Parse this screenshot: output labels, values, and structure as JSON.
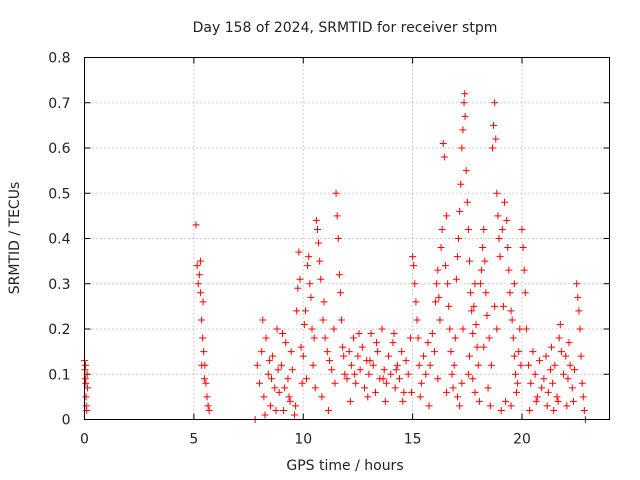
{
  "chart_data": {
    "type": "scatter",
    "title": "Day 158 of 2024, SRMTID for receiver stpm",
    "xlabel": "GPS time / hours",
    "ylabel": "SRMTID / TECUs",
    "xlim": [
      0,
      24
    ],
    "ylim": [
      0,
      0.8
    ],
    "grid": true,
    "marker": "plus",
    "series_color": "#ff0000",
    "x_ticks": [
      0,
      5,
      10,
      15,
      20
    ],
    "x_tick_labels": [
      "0",
      "5",
      "10",
      "15",
      "20"
    ],
    "y_ticks": [
      0,
      0.1,
      0.2,
      0.3,
      0.4,
      0.5,
      0.6,
      0.7,
      0.8
    ],
    "y_tick_labels": [
      "0",
      "0.1",
      "0.2",
      "0.3",
      "0.4",
      "0.5",
      "0.6",
      "0.7",
      "0.8"
    ],
    "series": [
      {
        "name": "SRMTID",
        "points": [
          [
            0.0,
            0.13
          ],
          [
            0.02,
            0.11
          ],
          [
            0.04,
            0.09
          ],
          [
            0.05,
            0.12
          ],
          [
            0.06,
            0.08
          ],
          [
            0.07,
            0.05
          ],
          [
            0.08,
            0.03
          ],
          [
            0.1,
            0.02
          ],
          [
            0.12,
            0.1
          ],
          [
            0.14,
            0.07
          ],
          [
            5.1,
            0.43
          ],
          [
            5.15,
            0.34
          ],
          [
            5.2,
            0.3
          ],
          [
            5.25,
            0.32
          ],
          [
            5.3,
            0.28
          ],
          [
            5.35,
            0.22
          ],
          [
            5.4,
            0.18
          ],
          [
            5.45,
            0.15
          ],
          [
            5.5,
            0.12
          ],
          [
            5.55,
            0.08
          ],
          [
            5.6,
            0.05
          ],
          [
            5.65,
            0.03
          ],
          [
            5.7,
            0.02
          ],
          [
            5.3,
            0.35
          ],
          [
            5.42,
            0.26
          ],
          [
            5.36,
            0.12
          ],
          [
            5.48,
            0.09
          ],
          [
            7.8,
            0.0
          ],
          [
            7.9,
            0.12
          ],
          [
            8.0,
            0.08
          ],
          [
            8.1,
            0.15
          ],
          [
            8.2,
            0.05
          ],
          [
            8.3,
            0.18
          ],
          [
            8.4,
            0.1
          ],
          [
            8.5,
            0.03
          ],
          [
            8.6,
            0.14
          ],
          [
            8.7,
            0.07
          ],
          [
            8.8,
            0.2
          ],
          [
            8.9,
            0.06
          ],
          [
            9.0,
            0.12
          ],
          [
            9.1,
            0.02
          ],
          [
            9.2,
            0.17
          ],
          [
            9.3,
            0.09
          ],
          [
            9.4,
            0.04
          ],
          [
            9.5,
            0.11
          ],
          [
            9.6,
            0.01
          ],
          [
            9.7,
            0.24
          ],
          [
            9.75,
            0.29
          ],
          [
            9.8,
            0.37
          ],
          [
            9.85,
            0.31
          ],
          [
            9.9,
            0.16
          ],
          [
            9.95,
            0.08
          ],
          [
            8.15,
            0.22
          ],
          [
            8.45,
            0.13
          ],
          [
            8.75,
            0.02
          ],
          [
            9.05,
            0.19
          ],
          [
            9.35,
            0.05
          ],
          [
            9.65,
            0.03
          ],
          [
            8.25,
            0.01
          ],
          [
            8.55,
            0.09
          ],
          [
            8.85,
            0.11
          ],
          [
            9.15,
            0.07
          ],
          [
            9.45,
            0.15
          ],
          [
            10.0,
            0.14
          ],
          [
            10.1,
            0.24
          ],
          [
            10.2,
            0.34
          ],
          [
            10.25,
            0.36
          ],
          [
            10.3,
            0.3
          ],
          [
            10.35,
            0.27
          ],
          [
            10.4,
            0.2
          ],
          [
            10.45,
            0.12
          ],
          [
            10.5,
            0.18
          ],
          [
            10.6,
            0.44
          ],
          [
            10.65,
            0.42
          ],
          [
            10.7,
            0.39
          ],
          [
            10.75,
            0.35
          ],
          [
            10.8,
            0.31
          ],
          [
            10.9,
            0.22
          ],
          [
            11.0,
            0.18
          ],
          [
            11.1,
            0.15
          ],
          [
            11.2,
            0.13
          ],
          [
            11.3,
            0.11
          ],
          [
            11.4,
            0.2
          ],
          [
            11.5,
            0.5
          ],
          [
            11.55,
            0.45
          ],
          [
            11.6,
            0.4
          ],
          [
            11.65,
            0.32
          ],
          [
            11.7,
            0.28
          ],
          [
            11.75,
            0.22
          ],
          [
            11.8,
            0.16
          ],
          [
            11.9,
            0.1
          ],
          [
            10.15,
            0.09
          ],
          [
            10.55,
            0.07
          ],
          [
            10.85,
            0.05
          ],
          [
            11.15,
            0.02
          ],
          [
            11.45,
            0.08
          ],
          [
            11.85,
            0.14
          ],
          [
            10.05,
            0.21
          ],
          [
            10.95,
            0.26
          ],
          [
            12.0,
            0.09
          ],
          [
            12.1,
            0.15
          ],
          [
            12.2,
            0.12
          ],
          [
            12.3,
            0.18
          ],
          [
            12.4,
            0.08
          ],
          [
            12.5,
            0.14
          ],
          [
            12.6,
            0.11
          ],
          [
            12.7,
            0.16
          ],
          [
            12.8,
            0.07
          ],
          [
            12.9,
            0.13
          ],
          [
            13.0,
            0.1
          ],
          [
            13.1,
            0.19
          ],
          [
            13.2,
            0.12
          ],
          [
            13.3,
            0.06
          ],
          [
            13.4,
            0.15
          ],
          [
            13.5,
            0.09
          ],
          [
            13.6,
            0.2
          ],
          [
            13.7,
            0.11
          ],
          [
            13.8,
            0.08
          ],
          [
            13.9,
            0.14
          ],
          [
            14.0,
            0.1
          ],
          [
            14.1,
            0.17
          ],
          [
            14.2,
            0.07
          ],
          [
            14.3,
            0.12
          ],
          [
            14.4,
            0.09
          ],
          [
            14.5,
            0.15
          ],
          [
            14.6,
            0.06
          ],
          [
            14.7,
            0.13
          ],
          [
            14.8,
            0.1
          ],
          [
            14.9,
            0.18
          ],
          [
            12.15,
            0.04
          ],
          [
            12.55,
            0.19
          ],
          [
            12.95,
            0.05
          ],
          [
            13.35,
            0.17
          ],
          [
            13.75,
            0.04
          ],
          [
            14.15,
            0.19
          ],
          [
            14.55,
            0.04
          ],
          [
            14.95,
            0.06
          ],
          [
            12.35,
            0.1
          ],
          [
            13.05,
            0.13
          ],
          [
            13.65,
            0.09
          ],
          [
            14.25,
            0.11
          ],
          [
            15.0,
            0.36
          ],
          [
            15.05,
            0.34
          ],
          [
            15.1,
            0.3
          ],
          [
            15.15,
            0.26
          ],
          [
            15.2,
            0.22
          ],
          [
            15.25,
            0.18
          ],
          [
            15.3,
            0.12
          ],
          [
            15.4,
            0.08
          ],
          [
            15.5,
            0.14
          ],
          [
            15.6,
            0.1
          ],
          [
            15.7,
            0.17
          ],
          [
            15.8,
            0.12
          ],
          [
            15.9,
            0.19
          ],
          [
            16.0,
            0.15
          ],
          [
            16.05,
            0.26
          ],
          [
            16.1,
            0.3
          ],
          [
            16.15,
            0.33
          ],
          [
            16.2,
            0.27
          ],
          [
            16.25,
            0.22
          ],
          [
            16.3,
            0.38
          ],
          [
            16.35,
            0.42
          ],
          [
            16.4,
            0.61
          ],
          [
            16.45,
            0.58
          ],
          [
            16.5,
            0.34
          ],
          [
            16.55,
            0.45
          ],
          [
            16.6,
            0.3
          ],
          [
            16.65,
            0.25
          ],
          [
            16.7,
            0.2
          ],
          [
            16.75,
            0.15
          ],
          [
            16.8,
            0.1
          ],
          [
            16.85,
            0.07
          ],
          [
            16.9,
            0.12
          ],
          [
            16.95,
            0.18
          ],
          [
            15.35,
            0.05
          ],
          [
            15.75,
            0.03
          ],
          [
            16.15,
            0.09
          ],
          [
            16.55,
            0.06
          ],
          [
            17.0,
            0.31
          ],
          [
            17.05,
            0.36
          ],
          [
            17.1,
            0.4
          ],
          [
            17.15,
            0.46
          ],
          [
            17.2,
            0.52
          ],
          [
            17.25,
            0.6
          ],
          [
            17.3,
            0.64
          ],
          [
            17.35,
            0.7
          ],
          [
            17.38,
            0.72
          ],
          [
            17.4,
            0.67
          ],
          [
            17.45,
            0.55
          ],
          [
            17.5,
            0.48
          ],
          [
            17.55,
            0.42
          ],
          [
            17.6,
            0.35
          ],
          [
            17.65,
            0.28
          ],
          [
            17.7,
            0.24
          ],
          [
            17.75,
            0.19
          ],
          [
            17.8,
            0.25
          ],
          [
            17.85,
            0.3
          ],
          [
            17.9,
            0.21
          ],
          [
            17.95,
            0.16
          ],
          [
            18.0,
            0.12
          ],
          [
            18.1,
            0.3
          ],
          [
            18.15,
            0.33
          ],
          [
            18.2,
            0.38
          ],
          [
            18.25,
            0.42
          ],
          [
            18.3,
            0.35
          ],
          [
            18.35,
            0.28
          ],
          [
            18.4,
            0.23
          ],
          [
            18.5,
            0.18
          ],
          [
            18.6,
            0.12
          ],
          [
            18.65,
            0.6
          ],
          [
            18.7,
            0.65
          ],
          [
            18.75,
            0.7
          ],
          [
            18.8,
            0.62
          ],
          [
            18.85,
            0.5
          ],
          [
            18.9,
            0.45
          ],
          [
            18.95,
            0.4
          ],
          [
            17.05,
            0.05
          ],
          [
            17.15,
            0.03
          ],
          [
            17.25,
            0.08
          ],
          [
            17.55,
            0.1
          ],
          [
            17.85,
            0.06
          ],
          [
            18.05,
            0.04
          ],
          [
            18.45,
            0.07
          ],
          [
            18.55,
            0.03
          ],
          [
            17.6,
            0.14
          ],
          [
            18.25,
            0.16
          ],
          [
            18.75,
            0.25
          ],
          [
            18.85,
            0.2
          ],
          [
            17.3,
            0.2
          ],
          [
            17.75,
            0.09
          ],
          [
            19.0,
            0.36
          ],
          [
            19.1,
            0.42
          ],
          [
            19.2,
            0.48
          ],
          [
            19.3,
            0.44
          ],
          [
            19.35,
            0.38
          ],
          [
            19.4,
            0.33
          ],
          [
            19.45,
            0.28
          ],
          [
            19.5,
            0.24
          ],
          [
            19.55,
            0.22
          ],
          [
            19.6,
            0.18
          ],
          [
            19.65,
            0.14
          ],
          [
            19.7,
            0.1
          ],
          [
            19.75,
            0.06
          ],
          [
            19.8,
            0.08
          ],
          [
            19.85,
            0.15
          ],
          [
            19.9,
            0.2
          ],
          [
            19.95,
            0.12
          ],
          [
            20.0,
            0.42
          ],
          [
            20.05,
            0.38
          ],
          [
            20.1,
            0.33
          ],
          [
            20.15,
            0.28
          ],
          [
            20.2,
            0.2
          ],
          [
            20.3,
            0.12
          ],
          [
            20.4,
            0.08
          ],
          [
            20.5,
            0.15
          ],
          [
            20.6,
            0.1
          ],
          [
            20.7,
            0.05
          ],
          [
            20.8,
            0.13
          ],
          [
            20.9,
            0.07
          ],
          [
            19.05,
            0.02
          ],
          [
            19.25,
            0.04
          ],
          [
            19.5,
            0.03
          ],
          [
            20.35,
            0.02
          ],
          [
            20.65,
            0.04
          ],
          [
            19.15,
            0.25
          ],
          [
            19.65,
            0.3
          ],
          [
            21.0,
            0.09
          ],
          [
            21.1,
            0.14
          ],
          [
            21.2,
            0.06
          ],
          [
            21.3,
            0.11
          ],
          [
            21.4,
            0.08
          ],
          [
            21.5,
            0.12
          ],
          [
            21.6,
            0.05
          ],
          [
            21.7,
            0.18
          ],
          [
            21.75,
            0.21
          ],
          [
            21.8,
            0.15
          ],
          [
            21.9,
            0.1
          ],
          [
            22.0,
            0.14
          ],
          [
            22.1,
            0.09
          ],
          [
            22.2,
            0.12
          ],
          [
            22.3,
            0.07
          ],
          [
            22.4,
            0.11
          ],
          [
            22.5,
            0.3
          ],
          [
            22.55,
            0.27
          ],
          [
            22.6,
            0.24
          ],
          [
            22.65,
            0.2
          ],
          [
            22.7,
            0.14
          ],
          [
            22.75,
            0.08
          ],
          [
            22.8,
            0.05
          ],
          [
            22.85,
            0.02
          ],
          [
            22.9,
            0.0
          ],
          [
            21.15,
            0.03
          ],
          [
            21.45,
            0.02
          ],
          [
            21.65,
            0.04
          ],
          [
            22.05,
            0.03
          ],
          [
            22.35,
            0.04
          ],
          [
            21.35,
            0.16
          ],
          [
            22.15,
            0.17
          ]
        ]
      }
    ]
  }
}
